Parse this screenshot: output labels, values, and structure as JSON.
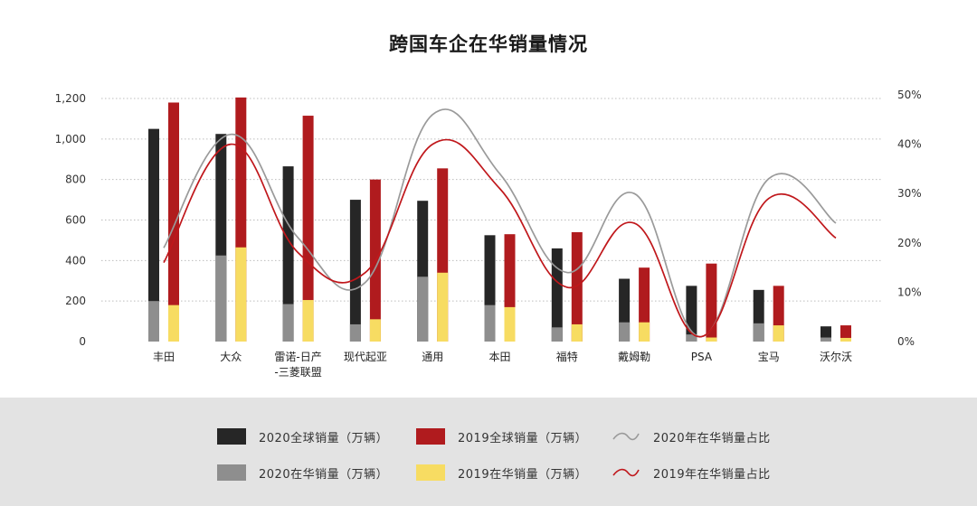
{
  "title": "跨国车企在华销量情况",
  "chart_data": {
    "type": "bar",
    "title": "跨国车企在华销量情况",
    "categories": [
      "丰田",
      "大众",
      "雷诺-日产\n-三菱联盟",
      "现代起亚",
      "通用",
      "本田",
      "福特",
      "戴姆勒",
      "PSA",
      "宝马",
      "沃尔沃"
    ],
    "left_axis": {
      "ylim": [
        0,
        1200
      ],
      "ticks": [
        "0",
        "200",
        "400",
        "600",
        "800",
        "1,000",
        "1,200"
      ]
    },
    "right_axis": {
      "ylim": [
        0,
        50
      ],
      "ticks": [
        "0%",
        "10%",
        "20%",
        "30%",
        "40%",
        "50%"
      ]
    },
    "grid": true,
    "series": [
      {
        "name": "2020全球销量（万辆）",
        "kind": "bar",
        "axis": "left",
        "color": "#262626",
        "values": [
          1050,
          1025,
          865,
          700,
          695,
          525,
          460,
          310,
          275,
          255,
          75
        ]
      },
      {
        "name": "2020在华销量（万辆）",
        "kind": "bar-inner",
        "axis": "left",
        "color": "#8e8e8e",
        "values": [
          200,
          425,
          185,
          85,
          320,
          180,
          70,
          95,
          35,
          90,
          20
        ]
      },
      {
        "name": "2019全球销量（万辆）",
        "kind": "bar",
        "axis": "left",
        "color": "#b01b1e",
        "values": [
          1180,
          1205,
          1115,
          800,
          855,
          530,
          540,
          365,
          385,
          275,
          80
        ]
      },
      {
        "name": "2019在华销量（万辆）",
        "kind": "bar-inner",
        "axis": "left",
        "color": "#f7dc62",
        "values": [
          180,
          465,
          205,
          110,
          340,
          170,
          85,
          95,
          20,
          80,
          18
        ]
      },
      {
        "name": "2020年在华销量占比",
        "kind": "line",
        "axis": "right",
        "color": "#9a9a9a",
        "values": [
          19,
          42,
          21,
          12,
          46,
          34,
          14,
          30,
          1,
          33,
          24
        ]
      },
      {
        "name": "2019年在华销量占比",
        "kind": "line",
        "axis": "right",
        "color": "#c0171b",
        "values": [
          16,
          40,
          18,
          14,
          40,
          31,
          11,
          24,
          1,
          29,
          21
        ]
      }
    ],
    "legend_position": "bottom"
  },
  "legend": [
    {
      "label": "2020全球销量（万辆）",
      "type": "swatch",
      "color": "#262626"
    },
    {
      "label": "2019全球销量（万辆）",
      "type": "swatch",
      "color": "#b01b1e"
    },
    {
      "label": "2020年在华销量占比",
      "type": "line",
      "color": "#9a9a9a"
    },
    {
      "label": "2020在华销量（万辆）",
      "type": "swatch",
      "color": "#8e8e8e"
    },
    {
      "label": "2019在华销量（万辆）",
      "type": "swatch",
      "color": "#f7dc62"
    },
    {
      "label": "2019年在华销量占比",
      "type": "line",
      "color": "#c0171b"
    }
  ]
}
